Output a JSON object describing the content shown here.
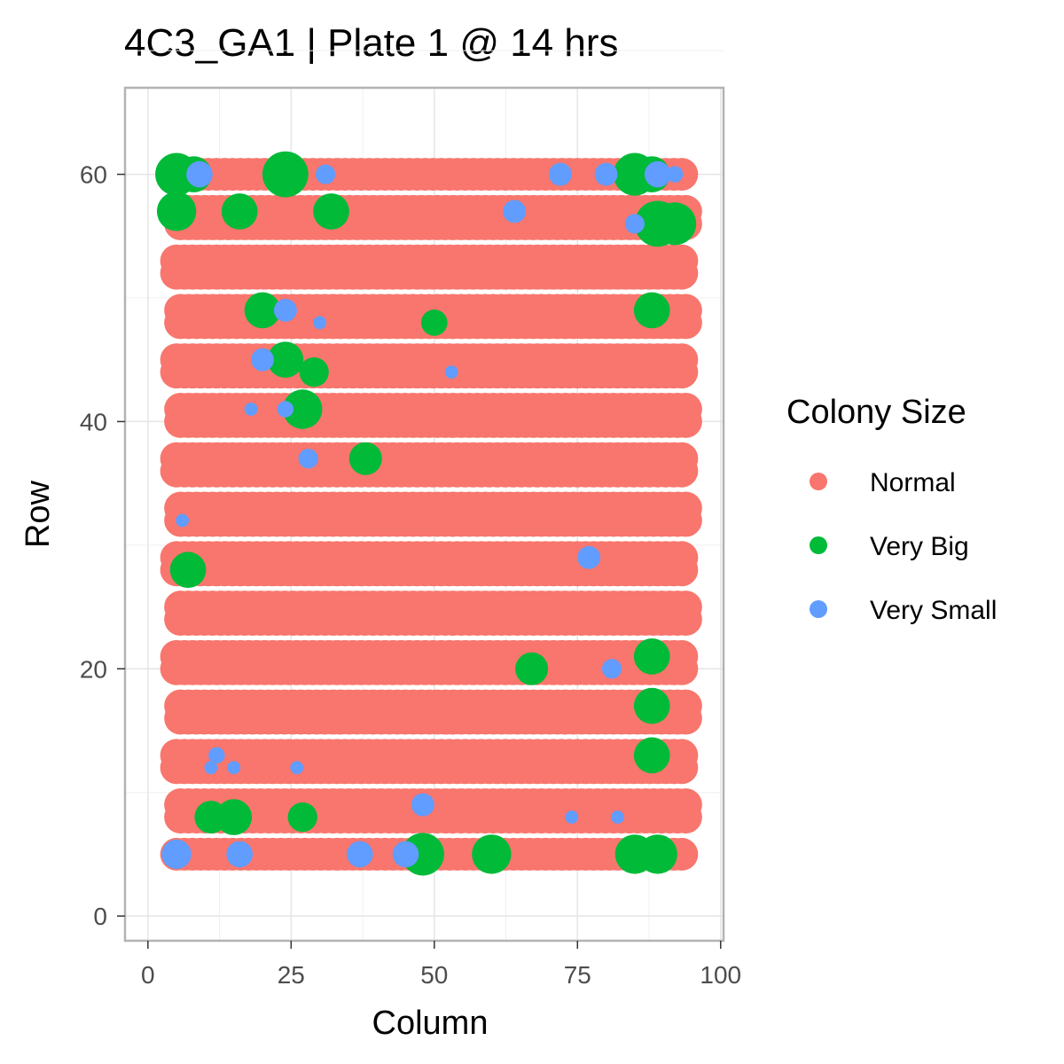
{
  "chart_data": {
    "type": "scatter",
    "title": "4C3_GA1 | Plate 1 @ 14 hrs",
    "xlabel": "Column",
    "ylabel": "Row",
    "xlim": [
      -4,
      100.5
    ],
    "ylim": [
      -2,
      67
    ],
    "xticks": [
      0,
      25,
      50,
      75,
      100
    ],
    "yticks": [
      0,
      20,
      40,
      60
    ],
    "grid": true,
    "legend": {
      "title": "Colony Size",
      "placement": "right"
    },
    "colors": {
      "Normal": "#F8766D",
      "Very Big": "#00BA38",
      "Very Small": "#619CFF"
    },
    "grid_spec": {
      "col_start": 5,
      "col_step": 1.4,
      "col_count": 64,
      "row_groups": [
        {
          "rows": [
            5
          ],
          "col_offset": 0
        },
        {
          "rows": [
            8,
            9
          ],
          "col_offset": 0.7
        },
        {
          "rows": [
            12,
            13
          ],
          "col_offset": 0
        },
        {
          "rows": [
            16,
            17
          ],
          "col_offset": 0.7
        },
        {
          "rows": [
            20,
            21
          ],
          "col_offset": 0
        },
        {
          "rows": [
            24,
            25
          ],
          "col_offset": 0.7
        },
        {
          "rows": [
            28,
            29
          ],
          "col_offset": 0
        },
        {
          "rows": [
            32,
            33
          ],
          "col_offset": 0.7
        },
        {
          "rows": [
            36,
            37
          ],
          "col_offset": 0
        },
        {
          "rows": [
            40,
            41
          ],
          "col_offset": 0.7
        },
        {
          "rows": [
            44,
            45
          ],
          "col_offset": 0
        },
        {
          "rows": [
            48,
            49
          ],
          "col_offset": 0.7
        },
        {
          "rows": [
            52,
            53
          ],
          "col_offset": 0
        },
        {
          "rows": [
            56,
            57
          ],
          "col_offset": 0.7
        },
        {
          "rows": [
            60
          ],
          "col_offset": 0
        }
      ],
      "default_class": "Normal",
      "default_size": 10
    },
    "series": [
      {
        "name": "Very Big",
        "points": [
          {
            "x": 5,
            "y": 60,
            "size": 13
          },
          {
            "x": 8,
            "y": 60,
            "size": 11
          },
          {
            "x": 24,
            "y": 60,
            "size": 14
          },
          {
            "x": 85,
            "y": 60,
            "size": 13
          },
          {
            "x": 88,
            "y": 60,
            "size": 11
          },
          {
            "x": 5,
            "y": 57,
            "size": 12
          },
          {
            "x": 16,
            "y": 57,
            "size": 11
          },
          {
            "x": 32,
            "y": 57,
            "size": 11
          },
          {
            "x": 89,
            "y": 56,
            "size": 14
          },
          {
            "x": 92,
            "y": 56,
            "size": 13
          },
          {
            "x": 20,
            "y": 49,
            "size": 11
          },
          {
            "x": 88,
            "y": 49,
            "size": 11
          },
          {
            "x": 50,
            "y": 48,
            "size": 8
          },
          {
            "x": 24,
            "y": 45,
            "size": 11
          },
          {
            "x": 29,
            "y": 44,
            "size": 9
          },
          {
            "x": 27,
            "y": 41,
            "size": 12
          },
          {
            "x": 38,
            "y": 37,
            "size": 10
          },
          {
            "x": 7,
            "y": 28,
            "size": 11
          },
          {
            "x": 88,
            "y": 21,
            "size": 11
          },
          {
            "x": 67,
            "y": 20,
            "size": 10
          },
          {
            "x": 88,
            "y": 17,
            "size": 11
          },
          {
            "x": 88,
            "y": 13,
            "size": 11
          },
          {
            "x": 11,
            "y": 8,
            "size": 10
          },
          {
            "x": 15,
            "y": 8,
            "size": 11
          },
          {
            "x": 27,
            "y": 8,
            "size": 9
          },
          {
            "x": 48,
            "y": 5,
            "size": 13
          },
          {
            "x": 60,
            "y": 5,
            "size": 12
          },
          {
            "x": 85,
            "y": 5,
            "size": 12
          },
          {
            "x": 89,
            "y": 5,
            "size": 12
          }
        ]
      },
      {
        "name": "Very Small",
        "points": [
          {
            "x": 9,
            "y": 60,
            "size": 8
          },
          {
            "x": 31,
            "y": 60,
            "size": 6
          },
          {
            "x": 72,
            "y": 60,
            "size": 7
          },
          {
            "x": 80,
            "y": 60,
            "size": 7
          },
          {
            "x": 89,
            "y": 60,
            "size": 8
          },
          {
            "x": 92,
            "y": 60,
            "size": 5
          },
          {
            "x": 64,
            "y": 57,
            "size": 7
          },
          {
            "x": 85,
            "y": 56,
            "size": 6
          },
          {
            "x": 24,
            "y": 49,
            "size": 7
          },
          {
            "x": 30,
            "y": 48,
            "size": 4
          },
          {
            "x": 20,
            "y": 45,
            "size": 7
          },
          {
            "x": 53,
            "y": 44,
            "size": 4
          },
          {
            "x": 18,
            "y": 41,
            "size": 4
          },
          {
            "x": 24,
            "y": 41,
            "size": 5
          },
          {
            "x": 28,
            "y": 37,
            "size": 6
          },
          {
            "x": 6,
            "y": 32,
            "size": 4
          },
          {
            "x": 77,
            "y": 29,
            "size": 7
          },
          {
            "x": 81,
            "y": 20,
            "size": 6
          },
          {
            "x": 12,
            "y": 13,
            "size": 5
          },
          {
            "x": 11,
            "y": 12,
            "size": 4
          },
          {
            "x": 15,
            "y": 12,
            "size": 4
          },
          {
            "x": 26,
            "y": 12,
            "size": 4
          },
          {
            "x": 48,
            "y": 9,
            "size": 7
          },
          {
            "x": 74,
            "y": 8,
            "size": 4
          },
          {
            "x": 82,
            "y": 8,
            "size": 4
          },
          {
            "x": 5,
            "y": 5,
            "size": 9
          },
          {
            "x": 16,
            "y": 5,
            "size": 8
          },
          {
            "x": 37,
            "y": 5,
            "size": 8
          },
          {
            "x": 45,
            "y": 5,
            "size": 8
          }
        ]
      }
    ]
  }
}
